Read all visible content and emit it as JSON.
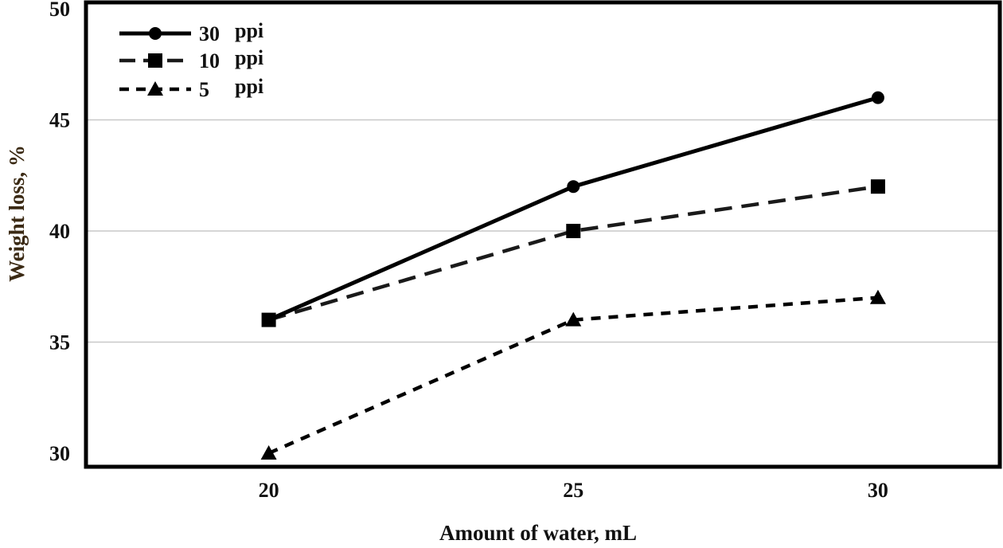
{
  "chart_data": {
    "type": "line",
    "title": "",
    "xlabel": "Amount of water, mL",
    "ylabel": "Weight loss, %",
    "x": [
      20,
      25,
      30
    ],
    "x_ticks": [
      "20",
      "25",
      "30"
    ],
    "y_ticks": [
      "30",
      "35",
      "40",
      "45",
      "50"
    ],
    "xlim": [
      17,
      32
    ],
    "ylim": [
      30,
      50
    ],
    "grid": "horizontal",
    "legend_position": "top-left",
    "series": [
      {
        "name": "30 ppi",
        "values": [
          36,
          42,
          46
        ],
        "marker": "circle",
        "line_style": "solid",
        "color": "#000000"
      },
      {
        "name": "10 ppi",
        "values": [
          36,
          40,
          42
        ],
        "marker": "square",
        "line_style": "dashed",
        "color": "#1a1a1a"
      },
      {
        "name": "5 ppi",
        "values": [
          30,
          36,
          37
        ],
        "marker": "triangle",
        "line_style": "dotted-dash",
        "color": "#000000"
      }
    ]
  },
  "legend": {
    "entries": [
      {
        "number": "30",
        "unit": "ppi"
      },
      {
        "number": "10",
        "unit": "ppi"
      },
      {
        "number": "5",
        "unit": "ppi"
      }
    ]
  }
}
